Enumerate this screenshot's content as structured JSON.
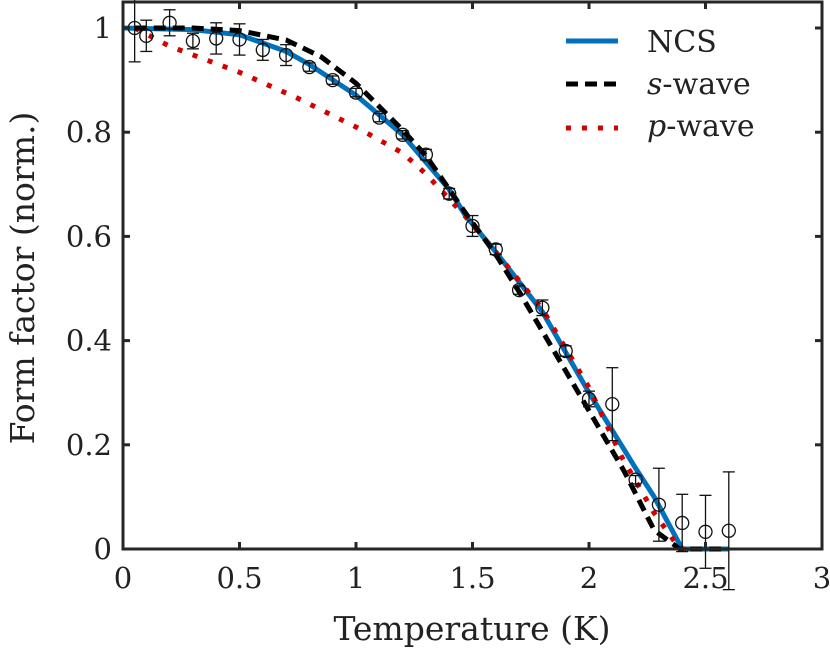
{
  "chart_data": {
    "type": "line",
    "title": "",
    "xlabel": "Temperature (K)",
    "ylabel": "Form factor (norm.)",
    "xlim": [
      0,
      3
    ],
    "ylim": [
      0,
      1.04
    ],
    "xticks": [
      0,
      0.5,
      1,
      1.5,
      2,
      2.5,
      3
    ],
    "xtick_labels": [
      "0",
      "0.5",
      "1",
      "1.5",
      "2",
      "2.5",
      "3"
    ],
    "yticks": [
      0,
      0.2,
      0.4,
      0.6,
      0.8,
      1
    ],
    "ytick_labels": [
      "0",
      "0.2",
      "0.4",
      "0.6",
      "0.8",
      "1"
    ],
    "grid": false,
    "legend_position": "top-right",
    "series": [
      {
        "name": "NCS",
        "style": "solid",
        "color": "#0072BD",
        "x": [
          0,
          0.3,
          0.5,
          0.7,
          0.8,
          1.0,
          1.2,
          1.4,
          1.47,
          1.6,
          1.8,
          2.0,
          2.2,
          2.28,
          2.4,
          2.6
        ],
        "y": [
          1,
          0.997,
          0.987,
          0.955,
          0.93,
          0.871,
          0.795,
          0.69,
          0.64,
          0.57,
          0.455,
          0.3,
          0.155,
          0.1,
          0,
          0
        ]
      },
      {
        "name": "s-wave",
        "name_italic": "s",
        "name_rest": "-wave",
        "style": "dashed",
        "color": "#000000",
        "x": [
          0.05,
          0.3,
          0.5,
          0.7,
          0.85,
          1.0,
          1.2,
          1.3,
          1.47,
          1.6,
          1.704,
          1.85,
          1.99,
          2.15,
          2.28,
          2.39,
          2.6
        ],
        "y": [
          1,
          1,
          0.995,
          0.977,
          0.945,
          0.894,
          0.804,
          0.755,
          0.645,
          0.565,
          0.491,
          0.38,
          0.273,
          0.15,
          0.036,
          0,
          0
        ]
      },
      {
        "name": "p-wave",
        "name_italic": "p",
        "name_rest": "-wave",
        "style": "dotted",
        "color": "#D40000",
        "x": [
          0.05,
          0.2,
          0.35,
          0.5,
          0.75,
          1.0,
          1.2,
          1.3,
          1.47,
          1.6,
          1.8,
          2.0,
          2.14,
          2.28,
          2.39,
          2.6
        ],
        "y": [
          1,
          0.965,
          0.94,
          0.915,
          0.865,
          0.81,
          0.76,
          0.72,
          0.638,
          0.57,
          0.46,
          0.31,
          0.177,
          0.069,
          0,
          0
        ]
      }
    ],
    "data_points": {
      "marker": "open-circle",
      "x": [
        0.05,
        0.1,
        0.2,
        0.3,
        0.4,
        0.5,
        0.6,
        0.7,
        0.8,
        0.9,
        1.0,
        1.1,
        1.2,
        1.3,
        1.4,
        1.5,
        1.6,
        1.7,
        1.8,
        1.9,
        2.0,
        2.1,
        2.2,
        2.3,
        2.4,
        2.5,
        2.6
      ],
      "y": [
        1.0,
        0.985,
        1.01,
        0.975,
        0.98,
        0.978,
        0.958,
        0.948,
        0.925,
        0.9,
        0.876,
        0.828,
        0.795,
        0.757,
        0.682,
        0.62,
        0.575,
        0.497,
        0.463,
        0.38,
        0.288,
        0.278,
        0.133,
        0.085,
        0.05,
        0.033,
        0.035
      ],
      "err": [
        0.065,
        0.03,
        0.025,
        0.015,
        0.03,
        0.03,
        0.02,
        0.02,
        0.008,
        0.008,
        0.008,
        0.008,
        0.008,
        0.01,
        0.01,
        0.02,
        0.01,
        0.008,
        0.015,
        0.01,
        0.015,
        0.07,
        0.008,
        0.07,
        0.055,
        0.07,
        0.113
      ]
    }
  }
}
